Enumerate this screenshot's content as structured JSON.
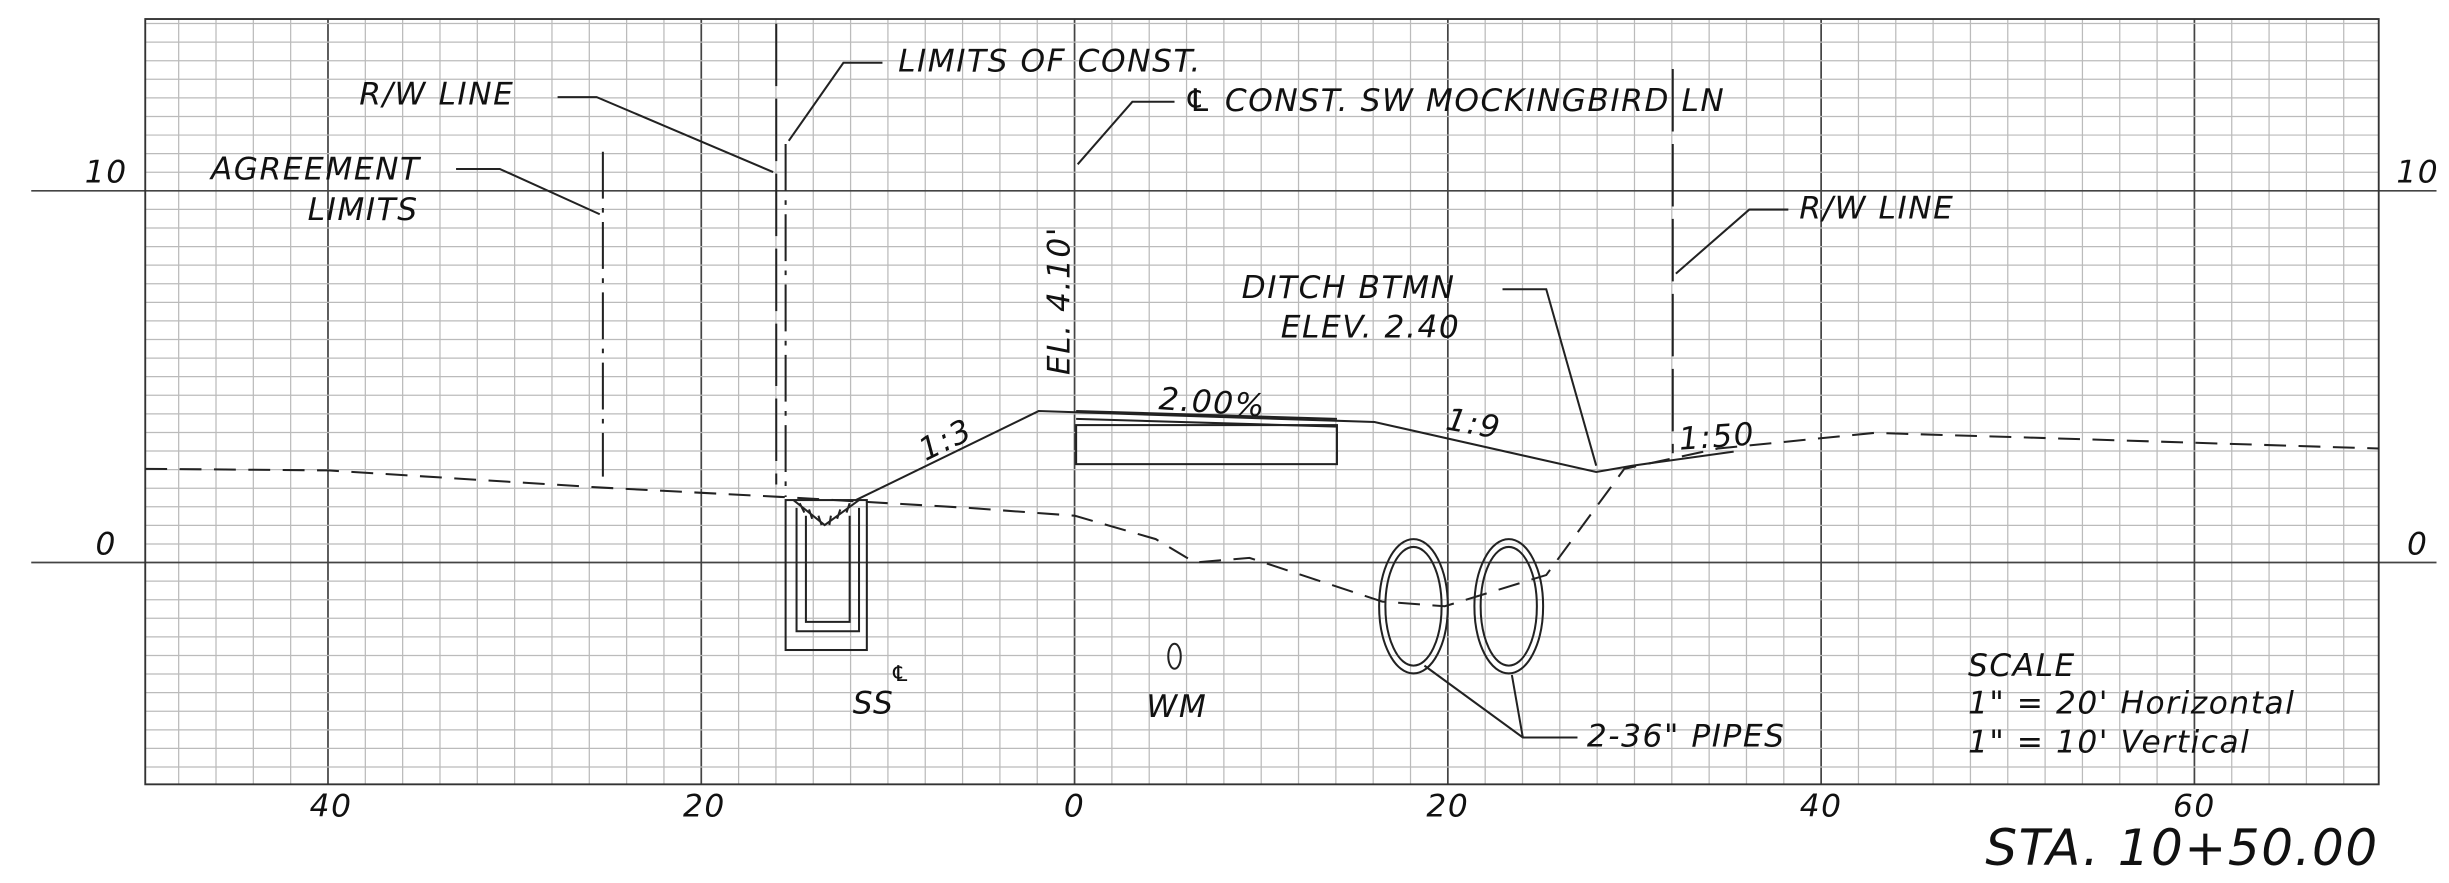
{
  "title": "STA. 10+50.00",
  "axes": {
    "x_labels": [
      "40",
      "20",
      "0",
      "20",
      "40",
      "60"
    ],
    "y_labels_left": [
      "10",
      "0"
    ],
    "y_labels_right": [
      "10",
      "0"
    ]
  },
  "annotations": {
    "rw_line_left": "R/W LINE",
    "limits_of_const": "LIMITS OF CONST.",
    "agreement_limits": [
      "AGREEMENT",
      "LIMITS"
    ],
    "centerline": "℄ CONST. SW MOCKINGBIRD LN",
    "elevation_cl": "EL. 4.10'",
    "cross_slope": "2.00%",
    "slope_left": "1:3",
    "slope_right": "1:9",
    "slope_far": "1:50",
    "ditch": [
      "DITCH BTMN",
      "ELEV. 2.40"
    ],
    "rw_line_right": "R/W LINE",
    "sewer_symbol": "℄",
    "sewer": "SS",
    "water_main": "WM",
    "pipes": "2-36\" PIPES"
  },
  "scale": {
    "title": "SCALE",
    "horizontal": "1\" = 20' Horizontal",
    "vertical": "1\" = 10' Vertical"
  }
}
